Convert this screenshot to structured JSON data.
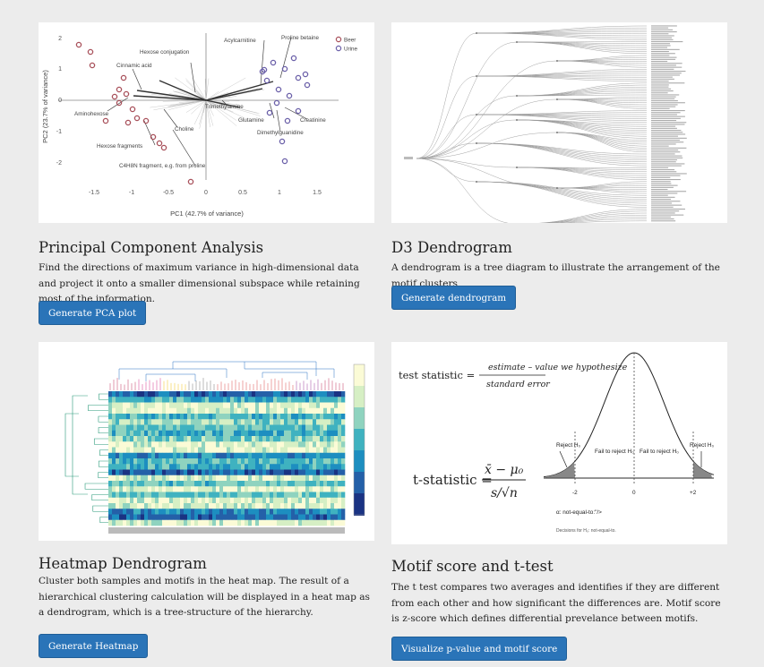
{
  "cards": [
    {
      "id": "pca",
      "title": "Principal Component Analysis",
      "description": "Find the directions of maximum variance in high-dimensional data and project it onto a smaller dimensional subspace while retaining most of the information.",
      "button": "Generate PCA plot",
      "figure": {
        "xlabel": "PC1 (42.7% of variance)",
        "ylabel": "PC2 (23.7% of variance)",
        "xticks": [
          "-1.5",
          "-1",
          "-0.5",
          "0",
          "0.5",
          "1",
          "1.5"
        ],
        "yticks": [
          "2",
          "1",
          "0",
          "-1",
          "-2"
        ],
        "legend": [
          "Beer",
          "Urine"
        ],
        "labels": [
          "Hexose conjugation",
          "Cinnamic acid",
          "Acylcarnitine",
          "Proline betaine",
          "Aminohexose",
          "Choline",
          "Trimethylamine",
          "Glutamine",
          "Creatinine",
          "Dimethylguanidine",
          "Hexose fragments",
          "C4H8N fragment, e.g. from proline"
        ],
        "colors": {
          "beer": "#a8505a",
          "urine": "#6a5fa8"
        }
      }
    },
    {
      "id": "dendrogram",
      "title": "D3 Dendrogram",
      "description": "A dendrogram is a tree diagram to illustrate the arrangement of the motif clusters",
      "button": "Generate dendrogram"
    },
    {
      "id": "heatmap",
      "title": "Heatmap Dendrogram",
      "description": "Cluster both samples and motifs in the heat map. The result of a hierarchical clustering calculation will be displayed in a heat map as a dendrogram, which is a tree-structure of the hierarchy.",
      "button": "Generate Heatmap"
    },
    {
      "id": "motif",
      "title": "Motif score and t-test",
      "description": "The t test compares two averages and identifies if they are different from each other and how significant the differences are. Motif score is z-score which defines differential prevelance between motifs.",
      "button": "Visualize p-value and motif score",
      "figure": {
        "formula_lhs": "test statistic =",
        "formula_num": "estimate – value we hypothesize",
        "formula_den": "standard error",
        "tstat": "t-statistic =",
        "reject_left": "Reject H₀",
        "fail_left": "Fail to reject H₀",
        "fail_right": "Fail to reject H₀",
        "reject_right": "Reject H₀",
        "tick_neg": "-2",
        "tick_zero": "0",
        "tick_pos": "+2",
        "note1": "α: not-equal-to:\"/>",
        "note2": "Decisions for H₀: not-equal-to."
      }
    }
  ]
}
